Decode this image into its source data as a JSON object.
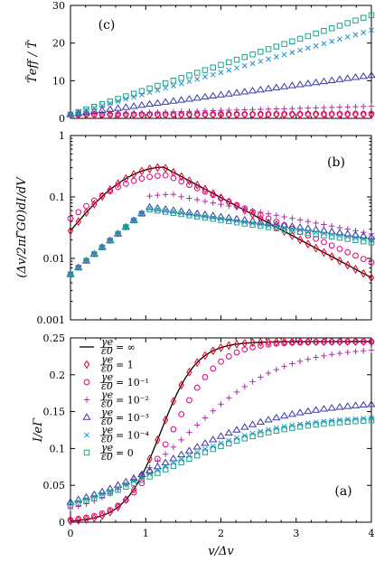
{
  "colors": {
    "inf": "#000000",
    "r1": "#e8001f",
    "r01": "#e2007a",
    "r001": "#a832a0",
    "r0001": "#3a3aa8",
    "r00001": "#1e90d0",
    "r0": "#19a58a"
  },
  "chart_data": [
    {
      "id": "panel_c",
      "type": "scatter",
      "panel_label": "(c)",
      "ylabel": "T̃_eff / T̃",
      "xlabel": "",
      "xlim": [
        0,
        4
      ],
      "ylim": [
        0,
        30
      ],
      "yscale": "linear",
      "yticks": [
        0,
        10,
        20,
        30
      ],
      "ytick_labels": [
        "0",
        "10",
        "20",
        "30"
      ],
      "series": [
        {
          "key": "r1",
          "marker": "diamond",
          "slope": 0.0
        },
        {
          "key": "r01",
          "marker": "circle",
          "slope": 0.05
        },
        {
          "key": "r001",
          "marker": "plus",
          "slope": 0.55
        },
        {
          "key": "r0001",
          "marker": "triangle",
          "slope": 2.6
        },
        {
          "key": "r00001",
          "marker": "cross",
          "slope": 5.6
        },
        {
          "key": "r0",
          "marker": "square",
          "slope": 6.6
        }
      ]
    },
    {
      "id": "panel_b",
      "type": "scatter",
      "panel_label": "(b)",
      "ylabel": "(Δ_v/2πΓ̃G₀) dI/dV",
      "xlabel": "",
      "xlim": [
        0,
        4
      ],
      "ylim": [
        0.001,
        1
      ],
      "yscale": "log",
      "yticks": [
        0.001,
        0.01,
        0.1,
        1
      ],
      "ytick_labels": [
        "0.001",
        "0.01",
        "0.1",
        "1"
      ],
      "series": [
        {
          "key": "inf",
          "marker": "line",
          "peak": 0.3
        },
        {
          "key": "r1",
          "marker": "diamond",
          "peak": 0.3
        },
        {
          "key": "r01",
          "marker": "circle",
          "peak": 0.22
        },
        {
          "key": "r001",
          "marker": "plus",
          "peak": 0.11
        },
        {
          "key": "r0001",
          "marker": "triangle",
          "peak": 0.07
        },
        {
          "key": "r00001",
          "marker": "cross",
          "peak": 0.068
        },
        {
          "key": "r0",
          "marker": "square",
          "peak": 0.065
        }
      ]
    },
    {
      "id": "panel_a",
      "type": "scatter",
      "panel_label": "(a)",
      "ylabel": "I / eΓ",
      "xlabel": "v/Δ_v",
      "xlim": [
        0,
        4
      ],
      "ylim": [
        0,
        0.25
      ],
      "yscale": "linear",
      "yticks": [
        0,
        0.05,
        0.1,
        0.15,
        0.2,
        0.25
      ],
      "ytick_labels": [
        "0",
        "0.05",
        "0.1",
        "0.15",
        "0.2",
        "0.25"
      ],
      "xticks": [
        0,
        1,
        2,
        3,
        4
      ],
      "xtick_labels": [
        "0",
        "1",
        "2",
        "3",
        "4"
      ],
      "legend_position": "left",
      "series": [
        {
          "key": "inf",
          "marker": "line",
          "name": "γ_e/ε_0 = ∞",
          "final": 0.245
        },
        {
          "key": "r1",
          "marker": "diamond",
          "name": "γ_e/ε_0 = 1",
          "final": 0.245
        },
        {
          "key": "r01",
          "marker": "circle",
          "name": "γ_e/ε_0 = 10^-1",
          "final": 0.245
        },
        {
          "key": "r001",
          "marker": "plus",
          "name": "γ_e/ε_0 = 10^-2",
          "final": 0.225
        },
        {
          "key": "r0001",
          "marker": "triangle",
          "name": "γ_e/ε_0 = 10^-3",
          "final": 0.148
        },
        {
          "key": "r00001",
          "marker": "cross",
          "name": "γ_e/ε_0 = 10^-4",
          "final": 0.13
        },
        {
          "key": "r0",
          "marker": "square",
          "name": "γ_e/ε_0 = 0",
          "final": 0.128
        }
      ]
    }
  ],
  "text": {
    "panel_c_label": "(c)",
    "panel_b_label": "(b)",
    "panel_a_label": "(a)",
    "xlabel": "v/Δv"
  },
  "legend": [
    {
      "key": "inf",
      "marker": "line",
      "value": "= ∞"
    },
    {
      "key": "r1",
      "marker": "diamond",
      "value": "= 1"
    },
    {
      "key": "r01",
      "marker": "circle",
      "value": "= 10⁻¹"
    },
    {
      "key": "r001",
      "marker": "plus",
      "value": "= 10⁻²"
    },
    {
      "key": "r0001",
      "marker": "triangle",
      "value": "= 10⁻³"
    },
    {
      "key": "r00001",
      "marker": "cross",
      "value": "= 10⁻⁴"
    },
    {
      "key": "r0",
      "marker": "square",
      "value": "= 0"
    }
  ]
}
